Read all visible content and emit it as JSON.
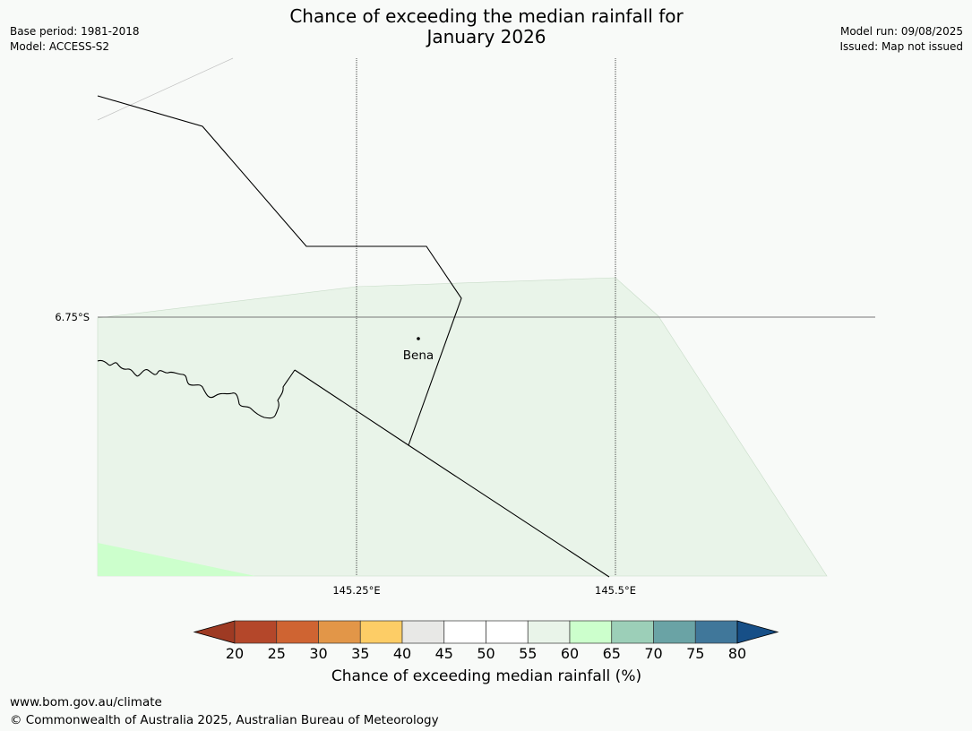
{
  "header": {
    "title_line1": "Chance of exceeding the median rainfall for",
    "title_line2": "January 2026",
    "base_period": "Base period: 1981-2018",
    "model": "Model: ACCESS-S2",
    "model_run": "Model run: 09/08/2025",
    "issued": "Issued: Map not issued"
  },
  "map": {
    "place_label": "Bena",
    "lat_label": "6.75°S",
    "lon_labels": [
      "145.25°E",
      "145.5°E"
    ],
    "fill_colors": {
      "band_55_60": "#e9f4e9",
      "band_60_65": "#ccffcc"
    }
  },
  "colorbar": {
    "ticks": [
      "20",
      "25",
      "30",
      "35",
      "40",
      "45",
      "50",
      "55",
      "60",
      "65",
      "70",
      "75",
      "80"
    ],
    "label": "Chance of exceeding median rainfall (%)",
    "colors": [
      "#9e3a23",
      "#b4472a",
      "#cf6432",
      "#e29648",
      "#fdcd66",
      "#e8e8e6",
      "#ffffff",
      "#ffffff",
      "#e9f4e9",
      "#ccffcc",
      "#9ccfb8",
      "#6aa3a5",
      "#40779a",
      "#174f87"
    ]
  },
  "footer": {
    "url": "www.bom.gov.au/climate",
    "copyright": "© Commonwealth of Australia 2025, Australian Bureau of Meteorology"
  }
}
